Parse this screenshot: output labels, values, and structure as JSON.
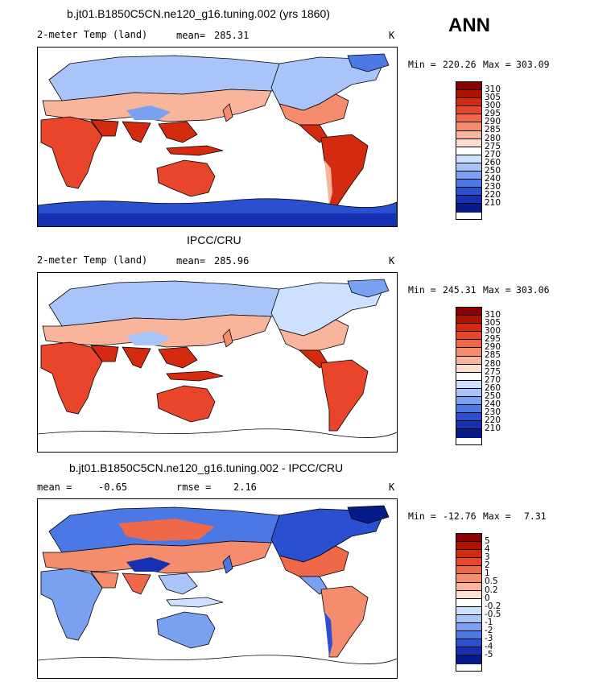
{
  "season": "ANN",
  "panels": [
    {
      "title": "b.jt01.B1850C5CN.ne120_g16.tuning.002 (yrs 1860)",
      "left_label": "2-meter Temp (land)",
      "stat_label": "mean=",
      "stat_value": "285.31",
      "units": "K",
      "min_label": "Min =",
      "min_value": "220.26",
      "max_label": "Max =",
      "max_value": "303.09",
      "colorbar_labels": [
        "310",
        "305",
        "300",
        "295",
        "290",
        "285",
        "280",
        "275",
        "270",
        "260",
        "250",
        "240",
        "230",
        "220",
        "210"
      ],
      "colorbar_colors": [
        "#8b0000",
        "#b01200",
        "#d42a10",
        "#e8452a",
        "#f0684a",
        "#f58c6e",
        "#f9b59c",
        "#fde0d0",
        "#ffffff",
        "#cde0ff",
        "#a8c4f8",
        "#7aa0f0",
        "#4c78e6",
        "#2a4fd0",
        "#1530b0",
        "#061a88"
      ]
    },
    {
      "title": "IPCC/CRU",
      "left_label": "2-meter Temp (land)",
      "stat_label": "mean=",
      "stat_value": "285.96",
      "units": "K",
      "min_label": "Min =",
      "min_value": "245.31",
      "max_label": "Max =",
      "max_value": "303.06",
      "colorbar_labels": [
        "310",
        "305",
        "300",
        "295",
        "290",
        "285",
        "280",
        "275",
        "270",
        "260",
        "250",
        "240",
        "230",
        "220",
        "210"
      ],
      "colorbar_colors": [
        "#8b0000",
        "#b01200",
        "#d42a10",
        "#e8452a",
        "#f0684a",
        "#f58c6e",
        "#f9b59c",
        "#fde0d0",
        "#ffffff",
        "#cde0ff",
        "#a8c4f8",
        "#7aa0f0",
        "#4c78e6",
        "#2a4fd0",
        "#1530b0",
        "#061a88"
      ]
    },
    {
      "title": "b.jt01.B1850C5CN.ne120_g16.tuning.002 - IPCC/CRU",
      "left_label": "mean =",
      "left_value": "-0.65",
      "stat_label": "rmse =",
      "stat_value": "2.16",
      "units": "K",
      "min_label": "Min =",
      "min_value": "-12.76",
      "max_label": "Max =",
      "max_value": "7.31",
      "colorbar_labels": [
        "5",
        "4",
        "3",
        "2",
        "1",
        "0.5",
        "0.2",
        "0",
        "-0.2",
        "-0.5",
        "-1",
        "-2",
        "-3",
        "-4",
        "-5"
      ],
      "colorbar_colors": [
        "#8b0000",
        "#b01200",
        "#d42a10",
        "#e8452a",
        "#f0684a",
        "#f58c6e",
        "#f9b59c",
        "#fde0d0",
        "#ffffff",
        "#cde0ff",
        "#a8c4f8",
        "#7aa0f0",
        "#4c78e6",
        "#2a4fd0",
        "#1530b0",
        "#061a88"
      ]
    }
  ]
}
